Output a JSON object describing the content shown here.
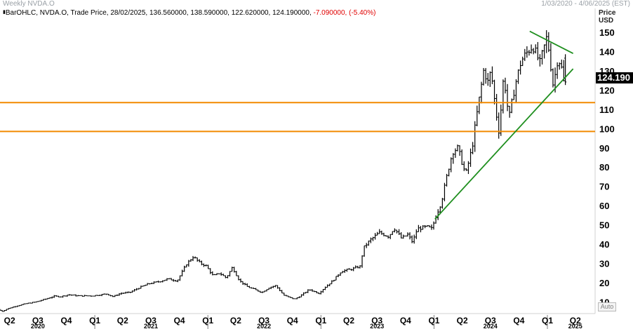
{
  "window": {
    "title": "Weekly NVDA.O",
    "date_range": "1/03/2020 - 4/06/2025 (EST)"
  },
  "legend": {
    "icon": "bar-ohlc-icon",
    "prefix": "BarOHLC, NVDA.O, Trade Price, 28/02/2025, 136.560000, 138.590000, 122.620000, 124.190000, ",
    "change": "-7.090000, (-5.40%)",
    "change_color": "#e00000"
  },
  "axis": {
    "price_label": "Price",
    "currency": "USD",
    "auto_label": "Auto",
    "last_value_label": "124.190"
  },
  "chart_data": {
    "type": "bar",
    "subtype": "ohlc",
    "frequency": "weekly",
    "symbol": "NVDA.O",
    "x_range": [
      "2020-03-01",
      "2025-06-04"
    ],
    "ylim": [
      4,
      158
    ],
    "y_ticks": [
      10,
      20,
      30,
      40,
      50,
      60,
      70,
      80,
      90,
      100,
      110,
      120,
      130,
      140,
      150
    ],
    "quarter_ticks": [
      "Q2",
      "Q3",
      "Q4",
      "Q1",
      "Q2",
      "Q3",
      "Q4",
      "Q1",
      "Q2",
      "Q3",
      "Q4",
      "Q1",
      "Q2",
      "Q3",
      "Q4",
      "Q1",
      "Q2",
      "Q3",
      "Q4",
      "Q1",
      "Q2"
    ],
    "quarter_dates": [
      "2020-04-01",
      "2020-07-01",
      "2020-10-01",
      "2021-01-01",
      "2021-04-01",
      "2021-07-01",
      "2021-10-01",
      "2022-01-01",
      "2022-04-01",
      "2022-07-01",
      "2022-10-01",
      "2023-01-01",
      "2023-04-01",
      "2023-07-01",
      "2023-10-01",
      "2024-01-01",
      "2024-04-01",
      "2024-07-01",
      "2024-10-01",
      "2025-01-01",
      "2025-04-01"
    ],
    "year_labels": [
      {
        "label": "2020",
        "date": "2020-07-01"
      },
      {
        "label": "2021",
        "date": "2021-07-01"
      },
      {
        "label": "2022",
        "date": "2022-07-01"
      },
      {
        "label": "2023",
        "date": "2023-07-01"
      },
      {
        "label": "2024",
        "date": "2024-07-01"
      },
      {
        "label": "2025",
        "date": "2025-04-01"
      }
    ],
    "last_bar": {
      "date": "2025-02-28",
      "open": 136.56,
      "high": 138.59,
      "low": 122.62,
      "close": 124.19
    },
    "close_path": [
      [
        "2020-03-01",
        6.2
      ],
      [
        "2020-03-15",
        5.2
      ],
      [
        "2020-04-01",
        6.5
      ],
      [
        "2020-05-01",
        8.0
      ],
      [
        "2020-06-01",
        9.2
      ],
      [
        "2020-07-01",
        10.0
      ],
      [
        "2020-08-01",
        11.5
      ],
      [
        "2020-08-30",
        13.0
      ],
      [
        "2020-09-20",
        12.8
      ],
      [
        "2020-10-15",
        13.8
      ],
      [
        "2020-11-15",
        13.2
      ],
      [
        "2021-01-01",
        13.2
      ],
      [
        "2021-02-15",
        14.2
      ],
      [
        "2021-03-08",
        12.8
      ],
      [
        "2021-04-01",
        14.5
      ],
      [
        "2021-05-01",
        15.0
      ],
      [
        "2021-06-01",
        17.5
      ],
      [
        "2021-07-01",
        19.5
      ],
      [
        "2021-08-01",
        20.5
      ],
      [
        "2021-09-01",
        22.0
      ],
      [
        "2021-10-01",
        21.0
      ],
      [
        "2021-11-01",
        30.0
      ],
      [
        "2021-11-22",
        33.5
      ],
      [
        "2021-12-15",
        30.0
      ],
      [
        "2022-01-01",
        29.0
      ],
      [
        "2022-01-25",
        23.5
      ],
      [
        "2022-02-15",
        25.0
      ],
      [
        "2022-03-08",
        22.5
      ],
      [
        "2022-03-28",
        28.0
      ],
      [
        "2022-04-20",
        21.0
      ],
      [
        "2022-05-15",
        18.0
      ],
      [
        "2022-06-15",
        16.0
      ],
      [
        "2022-07-01",
        15.0
      ],
      [
        "2022-07-25",
        17.5
      ],
      [
        "2022-08-15",
        18.5
      ],
      [
        "2022-09-10",
        13.5
      ],
      [
        "2022-10-01",
        12.2
      ],
      [
        "2022-10-15",
        11.5
      ],
      [
        "2022-11-01",
        13.0
      ],
      [
        "2022-12-01",
        16.5
      ],
      [
        "2023-01-01",
        14.5
      ],
      [
        "2023-01-20",
        17.5
      ],
      [
        "2023-02-15",
        21.0
      ],
      [
        "2023-03-15",
        26.0
      ],
      [
        "2023-04-15",
        27.0
      ],
      [
        "2023-05-15",
        28.5
      ],
      [
        "2023-05-25",
        38.0
      ],
      [
        "2023-06-15",
        42.0
      ],
      [
        "2023-07-15",
        46.0
      ],
      [
        "2023-08-15",
        44.0
      ],
      [
        "2023-09-01",
        48.5
      ],
      [
        "2023-09-25",
        43.0
      ],
      [
        "2023-10-15",
        45.0
      ],
      [
        "2023-10-31",
        41.0
      ],
      [
        "2023-11-15",
        48.0
      ],
      [
        "2023-12-15",
        49.0
      ],
      [
        "2024-01-01",
        48.0
      ],
      [
        "2024-01-15",
        55.0
      ],
      [
        "2024-02-01",
        62.0
      ],
      [
        "2024-02-22",
        78.0
      ],
      [
        "2024-03-08",
        88.0
      ],
      [
        "2024-03-25",
        90.0
      ],
      [
        "2024-04-19",
        76.0
      ],
      [
        "2024-05-10",
        90.0
      ],
      [
        "2024-05-24",
        106.0
      ],
      [
        "2024-06-18",
        132.0
      ],
      [
        "2024-06-28",
        123.0
      ],
      [
        "2024-07-10",
        130.0
      ],
      [
        "2024-07-25",
        110.0
      ],
      [
        "2024-08-05",
        98.0
      ],
      [
        "2024-08-20",
        128.0
      ],
      [
        "2024-09-06",
        105.0
      ],
      [
        "2024-09-25",
        122.0
      ],
      [
        "2024-10-15",
        135.0
      ],
      [
        "2024-11-05",
        140.0
      ],
      [
        "2024-11-22",
        143.0
      ],
      [
        "2024-12-15",
        134.0
      ],
      [
        "2025-01-07",
        148.0
      ],
      [
        "2025-01-27",
        122.0
      ],
      [
        "2025-02-10",
        136.0
      ],
      [
        "2025-02-21",
        134.0
      ],
      [
        "2025-02-28",
        124.19
      ]
    ],
    "horizontal_lines": [
      {
        "name": "resistance-line-upper",
        "value": 113.5,
        "color": "#f28a00"
      },
      {
        "name": "resistance-line-lower",
        "value": 98.5,
        "color": "#f28a00"
      }
    ],
    "trend_lines": [
      {
        "name": "uptrend-line",
        "color": "#1f8f1f",
        "from": {
          "date": "2024-01-04",
          "value": 53.0
        },
        "to": {
          "date": "2025-03-25",
          "value": 131.0
        }
      },
      {
        "name": "downtrend-line",
        "color": "#1f8f1f",
        "from": {
          "date": "2024-11-05",
          "value": 150.5
        },
        "to": {
          "date": "2025-03-25",
          "value": 139.0
        }
      }
    ],
    "colors": {
      "bars": "#000000",
      "background": "#ffffff"
    }
  }
}
